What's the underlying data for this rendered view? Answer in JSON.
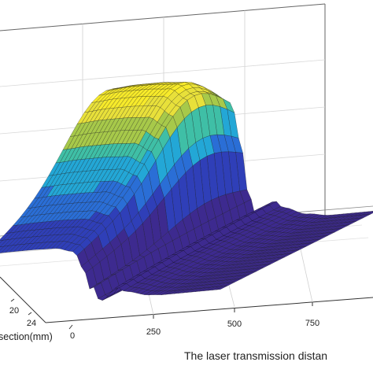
{
  "chart_data": {
    "type": "surface",
    "xlabel": "The laser transmission distan",
    "ylabel": "section(mm)",
    "x_ticks": [
      250,
      500,
      750
    ],
    "y_ticks": [
      20,
      24
    ],
    "extra_tick": "0",
    "xlim": [
      0,
      1000
    ],
    "ylim": [
      0,
      26
    ],
    "colormap": [
      "#3d2a8f",
      "#2f3fb8",
      "#2a6ed6",
      "#23a7d6",
      "#3fbfa6",
      "#a7c94a",
      "#e8e03a",
      "#f7ea2a"
    ],
    "mesh_color": "#111111",
    "profile": {
      "description_points_x": [
        0,
        100,
        200,
        300,
        380,
        420,
        450,
        480,
        500,
        540,
        560,
        600,
        700,
        800,
        900,
        1000
      ],
      "description_points_z": [
        0.98,
        0.99,
        0.99,
        0.98,
        0.9,
        0.6,
        0.25,
        0.05,
        0.02,
        0.1,
        0.14,
        0.09,
        0.04,
        0.02,
        0.02,
        0.02
      ]
    }
  }
}
